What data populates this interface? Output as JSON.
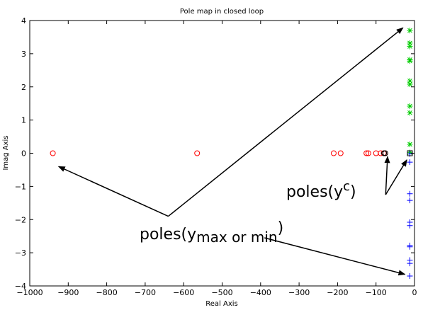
{
  "chart_data": {
    "type": "scatter",
    "title": "Pole map in closed loop",
    "xlabel": "Real Axis",
    "ylabel": "Imag Axis",
    "xlim": [
      -1000,
      0
    ],
    "ylim": [
      -4,
      4
    ],
    "xticks": [
      -1000,
      -900,
      -800,
      -700,
      -600,
      -500,
      -400,
      -300,
      -200,
      -100,
      0
    ],
    "yticks": [
      -4,
      -3,
      -2,
      -1,
      0,
      1,
      2,
      3,
      4
    ],
    "grid": false,
    "series": [
      {
        "marker": "circle",
        "color": "#ff0000",
        "points": [
          [
            -940,
            0
          ],
          [
            -565,
            0
          ],
          [
            -210,
            0
          ],
          [
            -192,
            0
          ],
          [
            -125,
            0
          ],
          [
            -120,
            0
          ],
          [
            -100,
            0
          ],
          [
            -88,
            0
          ],
          [
            -80,
            0
          ],
          [
            -76,
            0
          ]
        ]
      },
      {
        "marker": "circle",
        "color": "#000000",
        "points": [
          [
            -79,
            0
          ],
          [
            -76,
            0
          ]
        ]
      },
      {
        "marker": "star",
        "color": "#00cc00",
        "points": [
          [
            -12,
            3.7
          ],
          [
            -12,
            3.32
          ],
          [
            -12,
            3.22
          ],
          [
            -12,
            2.82
          ],
          [
            -12,
            2.78
          ],
          [
            -12,
            2.18
          ],
          [
            -12,
            2.08
          ],
          [
            -12,
            1.42
          ],
          [
            -12,
            1.22
          ],
          [
            -12,
            0.27
          ],
          [
            -12,
            0.02
          ]
        ]
      },
      {
        "marker": "plus",
        "color": "#0000ff",
        "points": [
          [
            -12,
            -0.02
          ],
          [
            -12,
            -0.27
          ],
          [
            -12,
            -1.22
          ],
          [
            -12,
            -1.42
          ],
          [
            -12,
            -2.08
          ],
          [
            -12,
            -2.18
          ],
          [
            -12,
            -2.78
          ],
          [
            -12,
            -2.82
          ],
          [
            -12,
            -3.22
          ],
          [
            -12,
            -3.32
          ],
          [
            -12,
            -3.7
          ]
        ]
      },
      {
        "marker": "square",
        "color": "#000000",
        "points": [
          [
            -12,
            0
          ]
        ]
      }
    ],
    "annotations": [
      {
        "text": "poles(y",
        "sub": "max or min",
        "close": ")",
        "arrows": [
          [
            -640,
            -1.9,
            -925,
            -0.4
          ],
          [
            -640,
            -1.9,
            -30,
            3.78
          ],
          [
            -390,
            -2.55,
            -25,
            -3.65
          ]
        ]
      },
      {
        "text": "poles(y",
        "sup": "c",
        "close": ")",
        "arrows": [
          [
            -75,
            -1.25,
            -70,
            -0.1
          ],
          [
            -75,
            -1.25,
            -20,
            -0.2
          ]
        ]
      }
    ]
  }
}
